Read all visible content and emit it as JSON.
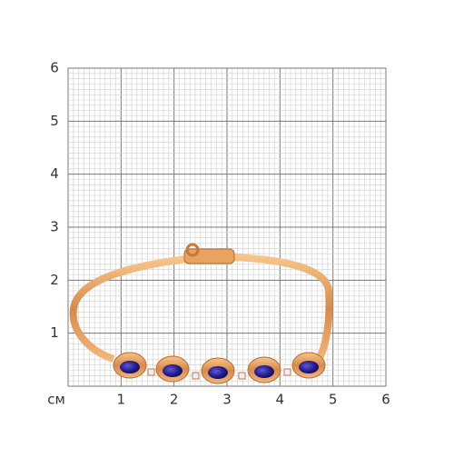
{
  "ruler": {
    "unit": "см",
    "x_labels": [
      "1",
      "2",
      "3",
      "4",
      "5",
      "6"
    ],
    "y_labels": [
      "1",
      "2",
      "3",
      "4",
      "5",
      "6"
    ]
  }
}
